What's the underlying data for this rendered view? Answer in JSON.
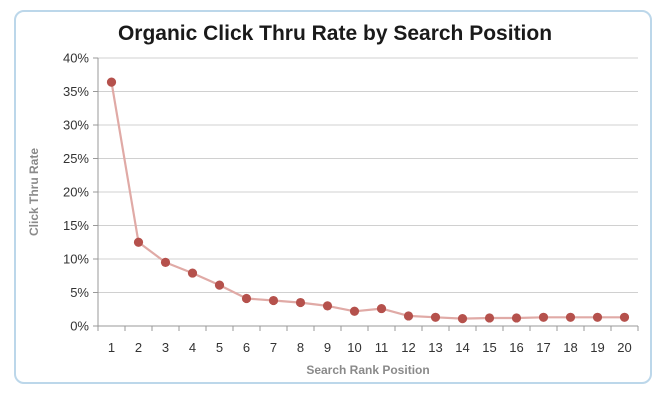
{
  "chart_data": {
    "type": "line",
    "title": "Organic Click Thru Rate by Search Position",
    "xlabel": "Search Rank Position",
    "ylabel": "Click Thru Rate",
    "x": [
      1,
      2,
      3,
      4,
      5,
      6,
      7,
      8,
      9,
      10,
      11,
      12,
      13,
      14,
      15,
      16,
      17,
      18,
      19,
      20
    ],
    "series": [
      {
        "values": [
          36.4,
          12.5,
          9.5,
          7.9,
          6.1,
          4.1,
          3.8,
          3.5,
          3.0,
          2.2,
          2.6,
          1.5,
          1.3,
          1.1,
          1.2,
          1.2,
          1.3,
          1.3,
          1.3,
          1.3
        ]
      }
    ],
    "ylim": [
      0,
      40
    ],
    "yticks": [
      "0%",
      "5%",
      "10%",
      "15%",
      "20%",
      "25%",
      "30%",
      "35%",
      "40%"
    ],
    "grid": true,
    "line_color": "#e0aaa6",
    "marker_color": "#b5514c",
    "grid_color": "#d0d0d0",
    "frame_color": "#bcd7ea"
  }
}
